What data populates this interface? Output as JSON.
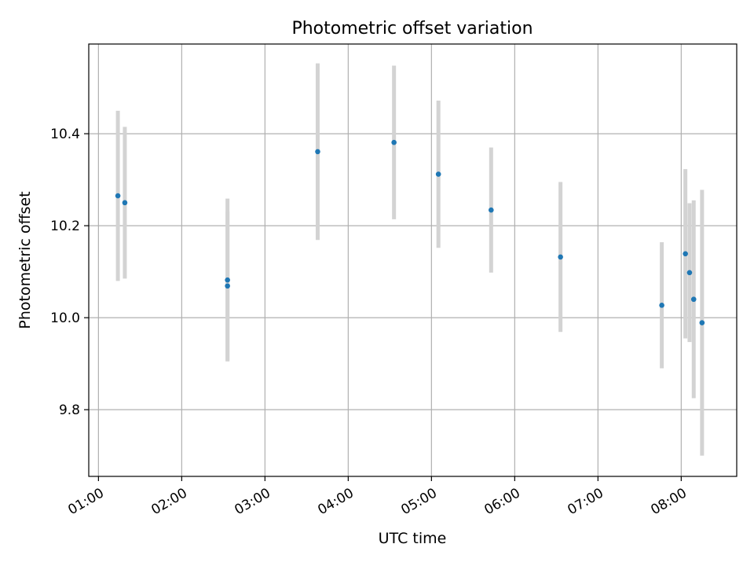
{
  "chart_data": {
    "type": "scatter",
    "title": "Photometric offset variation",
    "xlabel": "UTC time",
    "ylabel": "Photometric offset",
    "grid": true,
    "x_ticks": [
      "01:00",
      "02:00",
      "03:00",
      "04:00",
      "05:00",
      "06:00",
      "07:00",
      "08:00"
    ],
    "y_ticks": [
      "9.8",
      "10.0",
      "10.2",
      "10.4"
    ],
    "xlim": [
      "00:53",
      "08:40"
    ],
    "ylim": [
      9.655,
      10.595
    ],
    "colors": {
      "point": "#1f77b4",
      "errorbar": "#d3d3d3",
      "grid": "#b0b0b0"
    },
    "points": [
      {
        "x": "01:14",
        "y": 10.265,
        "yerr": 0.185
      },
      {
        "x": "01:19",
        "y": 10.25,
        "yerr": 0.165
      },
      {
        "x": "02:33",
        "y": 10.082,
        "yerr": 0.177
      },
      {
        "x": "02:33",
        "y": 10.069,
        "yerr": 0.162
      },
      {
        "x": "03:38",
        "y": 10.361,
        "yerr": 0.192
      },
      {
        "x": "04:33",
        "y": 10.381,
        "yerr": 0.167
      },
      {
        "x": "05:05",
        "y": 10.312,
        "yerr": 0.16
      },
      {
        "x": "05:43",
        "y": 10.234,
        "yerr": 0.136
      },
      {
        "x": "06:33",
        "y": 10.132,
        "yerr": 0.163
      },
      {
        "x": "07:46",
        "y": 10.027,
        "yerr": 0.137
      },
      {
        "x": "08:03",
        "y": 10.139,
        "yerr": 0.184
      },
      {
        "x": "08:06",
        "y": 10.098,
        "yerr": 0.151
      },
      {
        "x": "08:09",
        "y": 10.04,
        "yerr": 0.215
      },
      {
        "x": "08:15",
        "y": 9.989,
        "yerr": 0.289
      }
    ]
  }
}
